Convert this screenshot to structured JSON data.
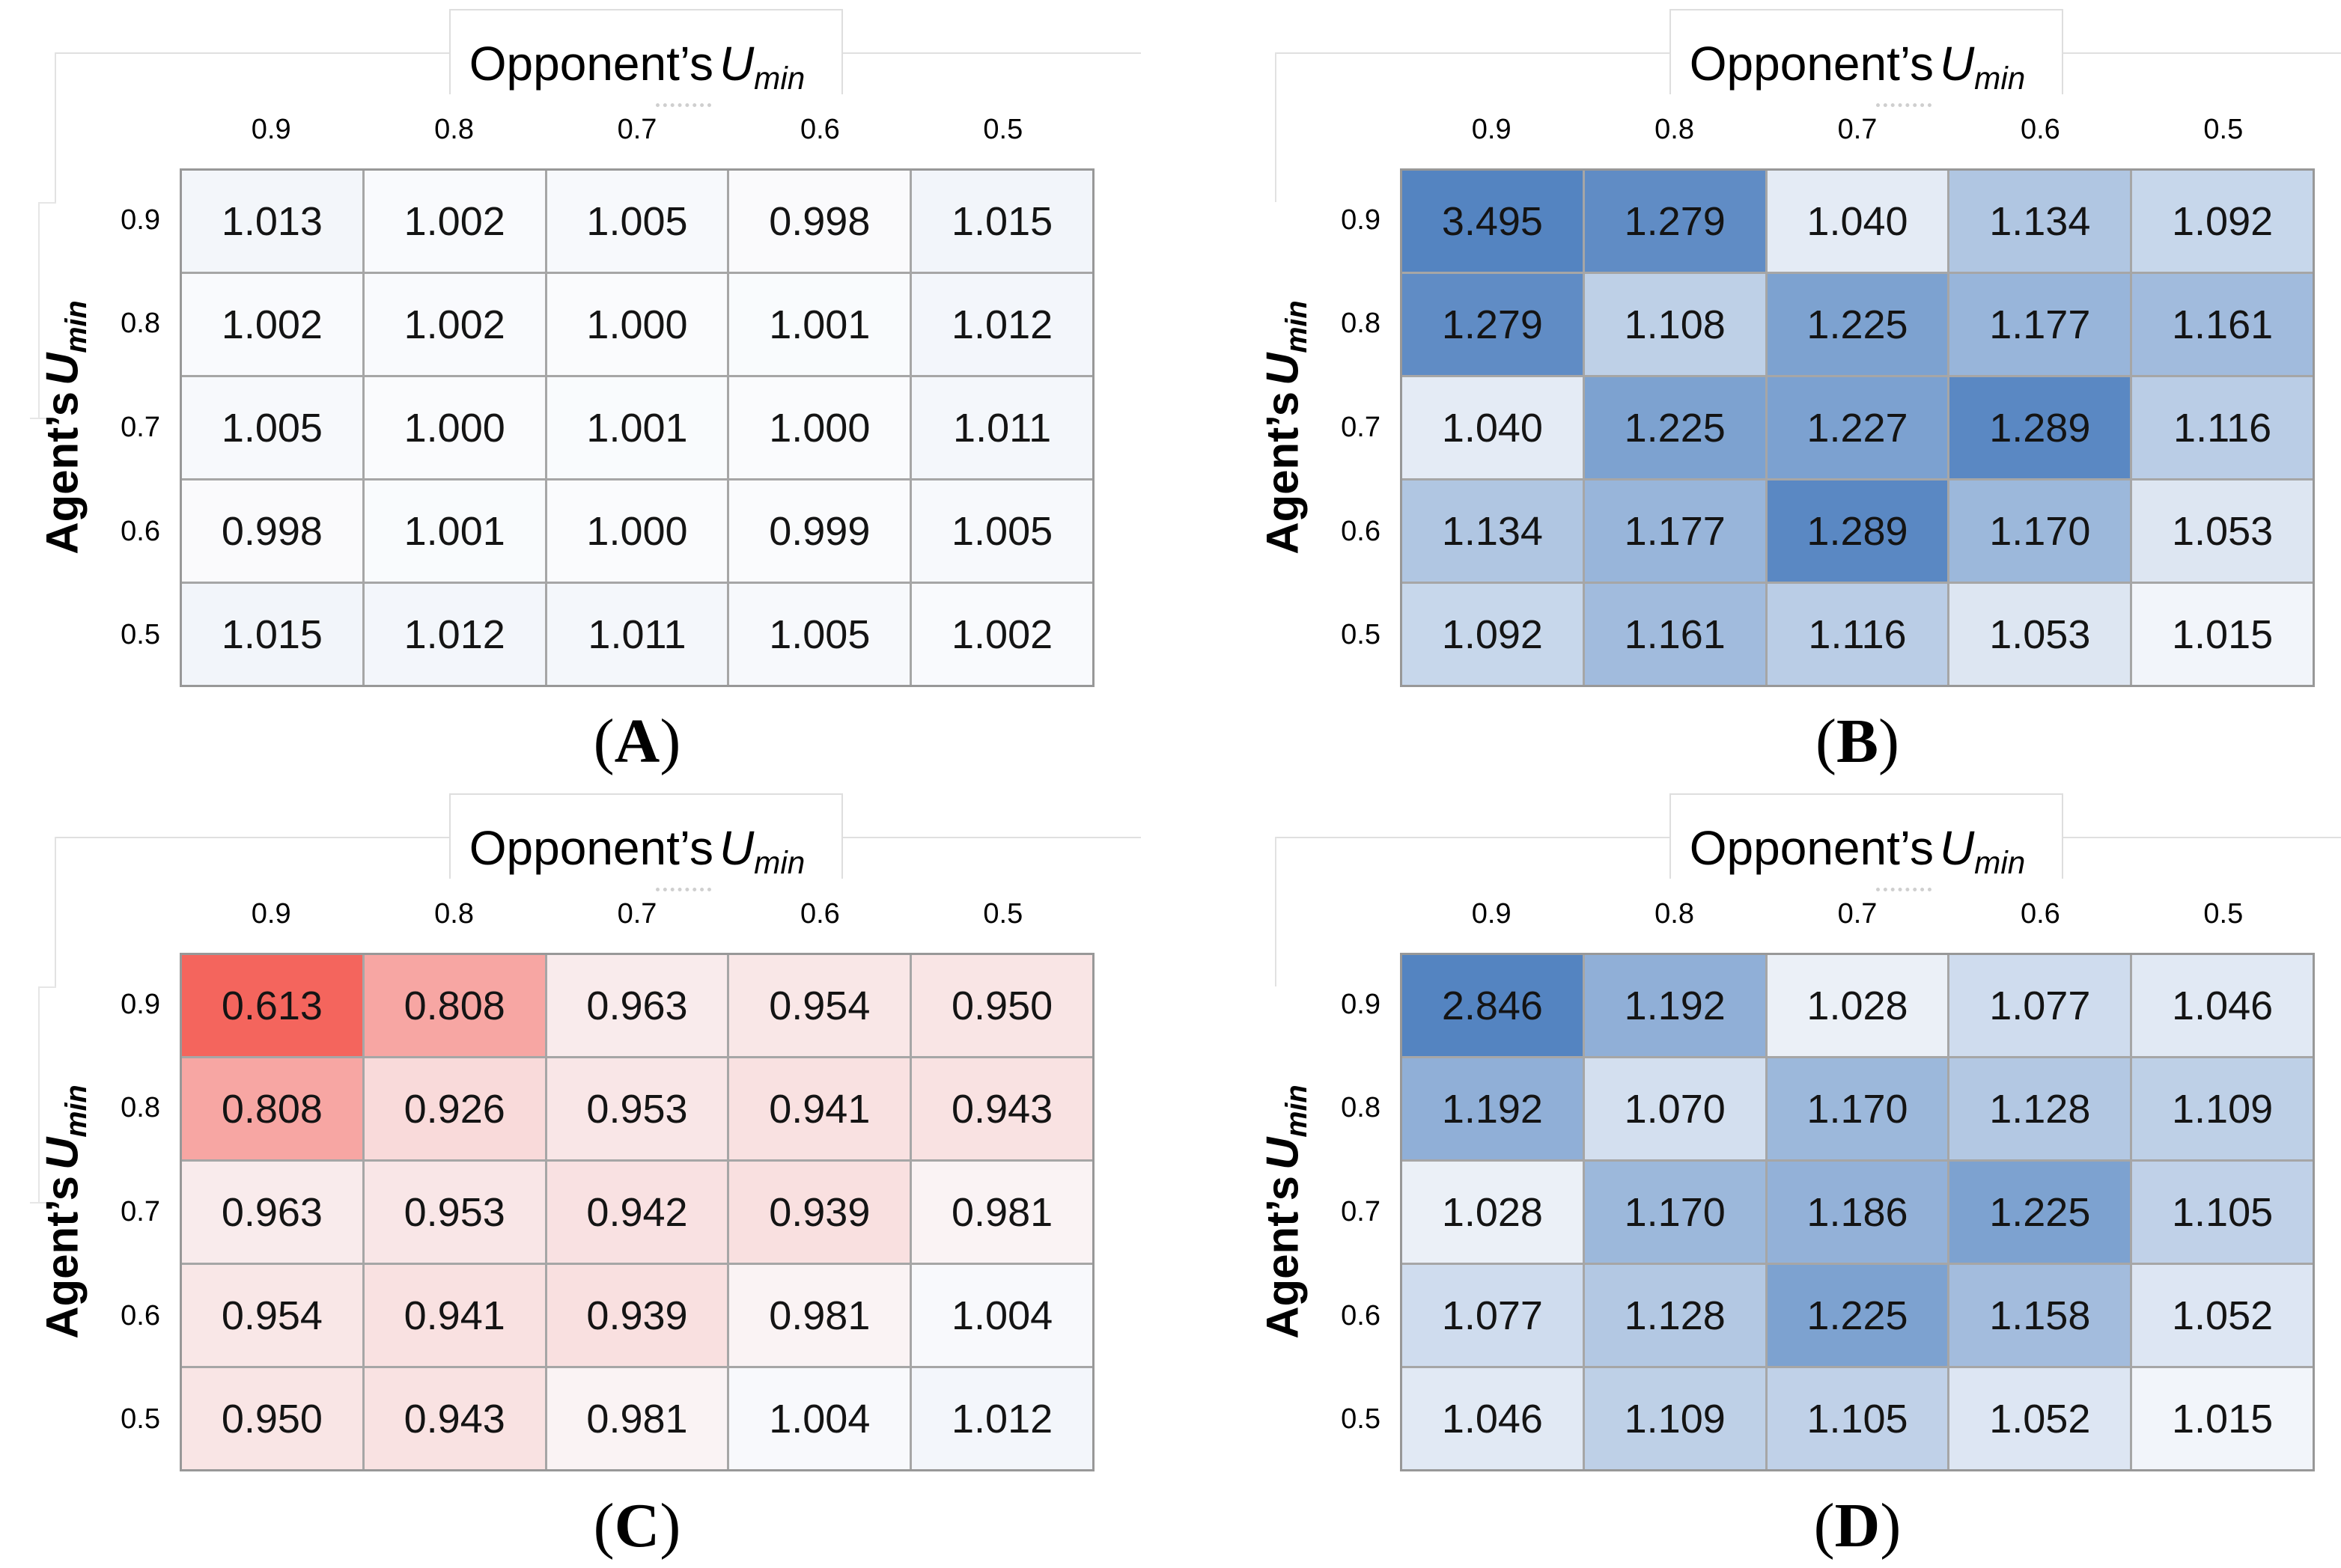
{
  "shared": {
    "x_axis_title": {
      "text": "Opponent’s",
      "var": "U",
      "sub": "min"
    },
    "y_axis_title": {
      "text": "Agent’s",
      "var": "U",
      "sub": "min"
    },
    "open_paren": "(",
    "close_paren": ")"
  },
  "chart_data": [
    {
      "type": "heatmap",
      "panel_label": "A",
      "title": "Opponent's U_min",
      "ylabel": "Agent's U_min",
      "columns": [
        "0.9",
        "0.8",
        "0.7",
        "0.6",
        "0.5"
      ],
      "rows": [
        "0.9",
        "0.8",
        "0.7",
        "0.6",
        "0.5"
      ],
      "values": [
        [
          1.013,
          1.002,
          1.005,
          0.998,
          1.015
        ],
        [
          1.002,
          1.002,
          1.0,
          1.001,
          1.012
        ],
        [
          1.005,
          1.0,
          1.001,
          1.0,
          1.011
        ],
        [
          0.998,
          1.001,
          1.0,
          0.999,
          1.005
        ],
        [
          1.015,
          1.012,
          1.011,
          1.005,
          1.002
        ]
      ]
    },
    {
      "type": "heatmap",
      "panel_label": "B",
      "title": "Opponent's U_min",
      "ylabel": "Agent's U_min",
      "columns": [
        "0.9",
        "0.8",
        "0.7",
        "0.6",
        "0.5"
      ],
      "rows": [
        "0.9",
        "0.8",
        "0.7",
        "0.6",
        "0.5"
      ],
      "values": [
        [
          3.495,
          1.279,
          1.04,
          1.134,
          1.092
        ],
        [
          1.279,
          1.108,
          1.225,
          1.177,
          1.161
        ],
        [
          1.04,
          1.225,
          1.227,
          1.289,
          1.116
        ],
        [
          1.134,
          1.177,
          1.289,
          1.17,
          1.053
        ],
        [
          1.092,
          1.161,
          1.116,
          1.053,
          1.015
        ]
      ]
    },
    {
      "type": "heatmap",
      "panel_label": "C",
      "title": "Opponent's U_min",
      "ylabel": "Agent's U_min",
      "columns": [
        "0.9",
        "0.8",
        "0.7",
        "0.6",
        "0.5"
      ],
      "rows": [
        "0.9",
        "0.8",
        "0.7",
        "0.6",
        "0.5"
      ],
      "values": [
        [
          0.613,
          0.808,
          0.963,
          0.954,
          0.95
        ],
        [
          0.808,
          0.926,
          0.953,
          0.941,
          0.943
        ],
        [
          0.963,
          0.953,
          0.942,
          0.939,
          0.981
        ],
        [
          0.954,
          0.941,
          0.939,
          0.981,
          1.004
        ],
        [
          0.95,
          0.943,
          0.981,
          1.004,
          1.012
        ]
      ]
    },
    {
      "type": "heatmap",
      "panel_label": "D",
      "title": "Opponent's U_min",
      "ylabel": "Agent's U_min",
      "columns": [
        "0.9",
        "0.8",
        "0.7",
        "0.6",
        "0.5"
      ],
      "rows": [
        "0.9",
        "0.8",
        "0.7",
        "0.6",
        "0.5"
      ],
      "values": [
        [
          2.846,
          1.192,
          1.028,
          1.077,
          1.046
        ],
        [
          1.192,
          1.07,
          1.17,
          1.128,
          1.109
        ],
        [
          1.028,
          1.17,
          1.186,
          1.225,
          1.105
        ],
        [
          1.077,
          1.128,
          1.225,
          1.158,
          1.052
        ],
        [
          1.046,
          1.109,
          1.105,
          1.052,
          1.015
        ]
      ]
    }
  ],
  "style": {
    "colormap_center_value": 1.0,
    "blue_span": 0.3,
    "red_span": 0.34,
    "base_color": "#fafbfd",
    "blue_max_color": "#5484c1",
    "red_max_color": "#f4655d",
    "grid_line_color": "#a6a6a6",
    "outer_border_color": "#989898",
    "value_text_color": "#141414"
  }
}
